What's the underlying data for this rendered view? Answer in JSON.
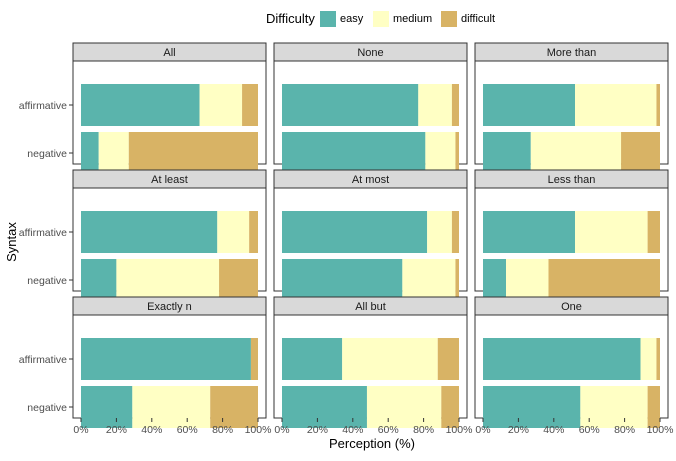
{
  "chart_data": {
    "type": "bar",
    "orientation": "horizontal",
    "stacked": true,
    "xlabel": "Perception (%)",
    "ylabel": "Syntax",
    "xlim": [
      0,
      100
    ],
    "x_ticks": [
      "0%",
      "20%",
      "40%",
      "60%",
      "80%",
      "100%"
    ],
    "categories": [
      "affirmative",
      "negative"
    ],
    "legend": {
      "title": "Difficulty",
      "position": "top",
      "entries": [
        "easy",
        "medium",
        "difficult"
      ]
    },
    "colors": {
      "easy": "#5ab4ac",
      "medium": "#ffffc4",
      "difficult": "#d8b365"
    },
    "panels": [
      {
        "title": "All",
        "affirmative": [
          67,
          24,
          9
        ],
        "negative": [
          10,
          17,
          73
        ]
      },
      {
        "title": "None",
        "affirmative": [
          77,
          19,
          4
        ],
        "negative": [
          81,
          17,
          2
        ]
      },
      {
        "title": "More than",
        "affirmative": [
          52,
          46,
          2
        ],
        "negative": [
          27,
          51,
          22
        ]
      },
      {
        "title": "At least",
        "affirmative": [
          77,
          18,
          5
        ],
        "negative": [
          20,
          58,
          22
        ]
      },
      {
        "title": "At most",
        "affirmative": [
          82,
          14,
          4
        ],
        "negative": [
          68,
          30,
          2
        ]
      },
      {
        "title": "Less than",
        "affirmative": [
          52,
          41,
          7
        ],
        "negative": [
          13,
          24,
          63
        ]
      },
      {
        "title": "Exactly n",
        "affirmative": [
          96,
          0,
          4
        ],
        "negative": [
          29,
          44,
          27
        ]
      },
      {
        "title": "All but",
        "affirmative": [
          34,
          54,
          12
        ],
        "negative": [
          48,
          42,
          10
        ]
      },
      {
        "title": "One",
        "affirmative": [
          89,
          9,
          2
        ],
        "negative": [
          55,
          38,
          7
        ]
      }
    ]
  }
}
